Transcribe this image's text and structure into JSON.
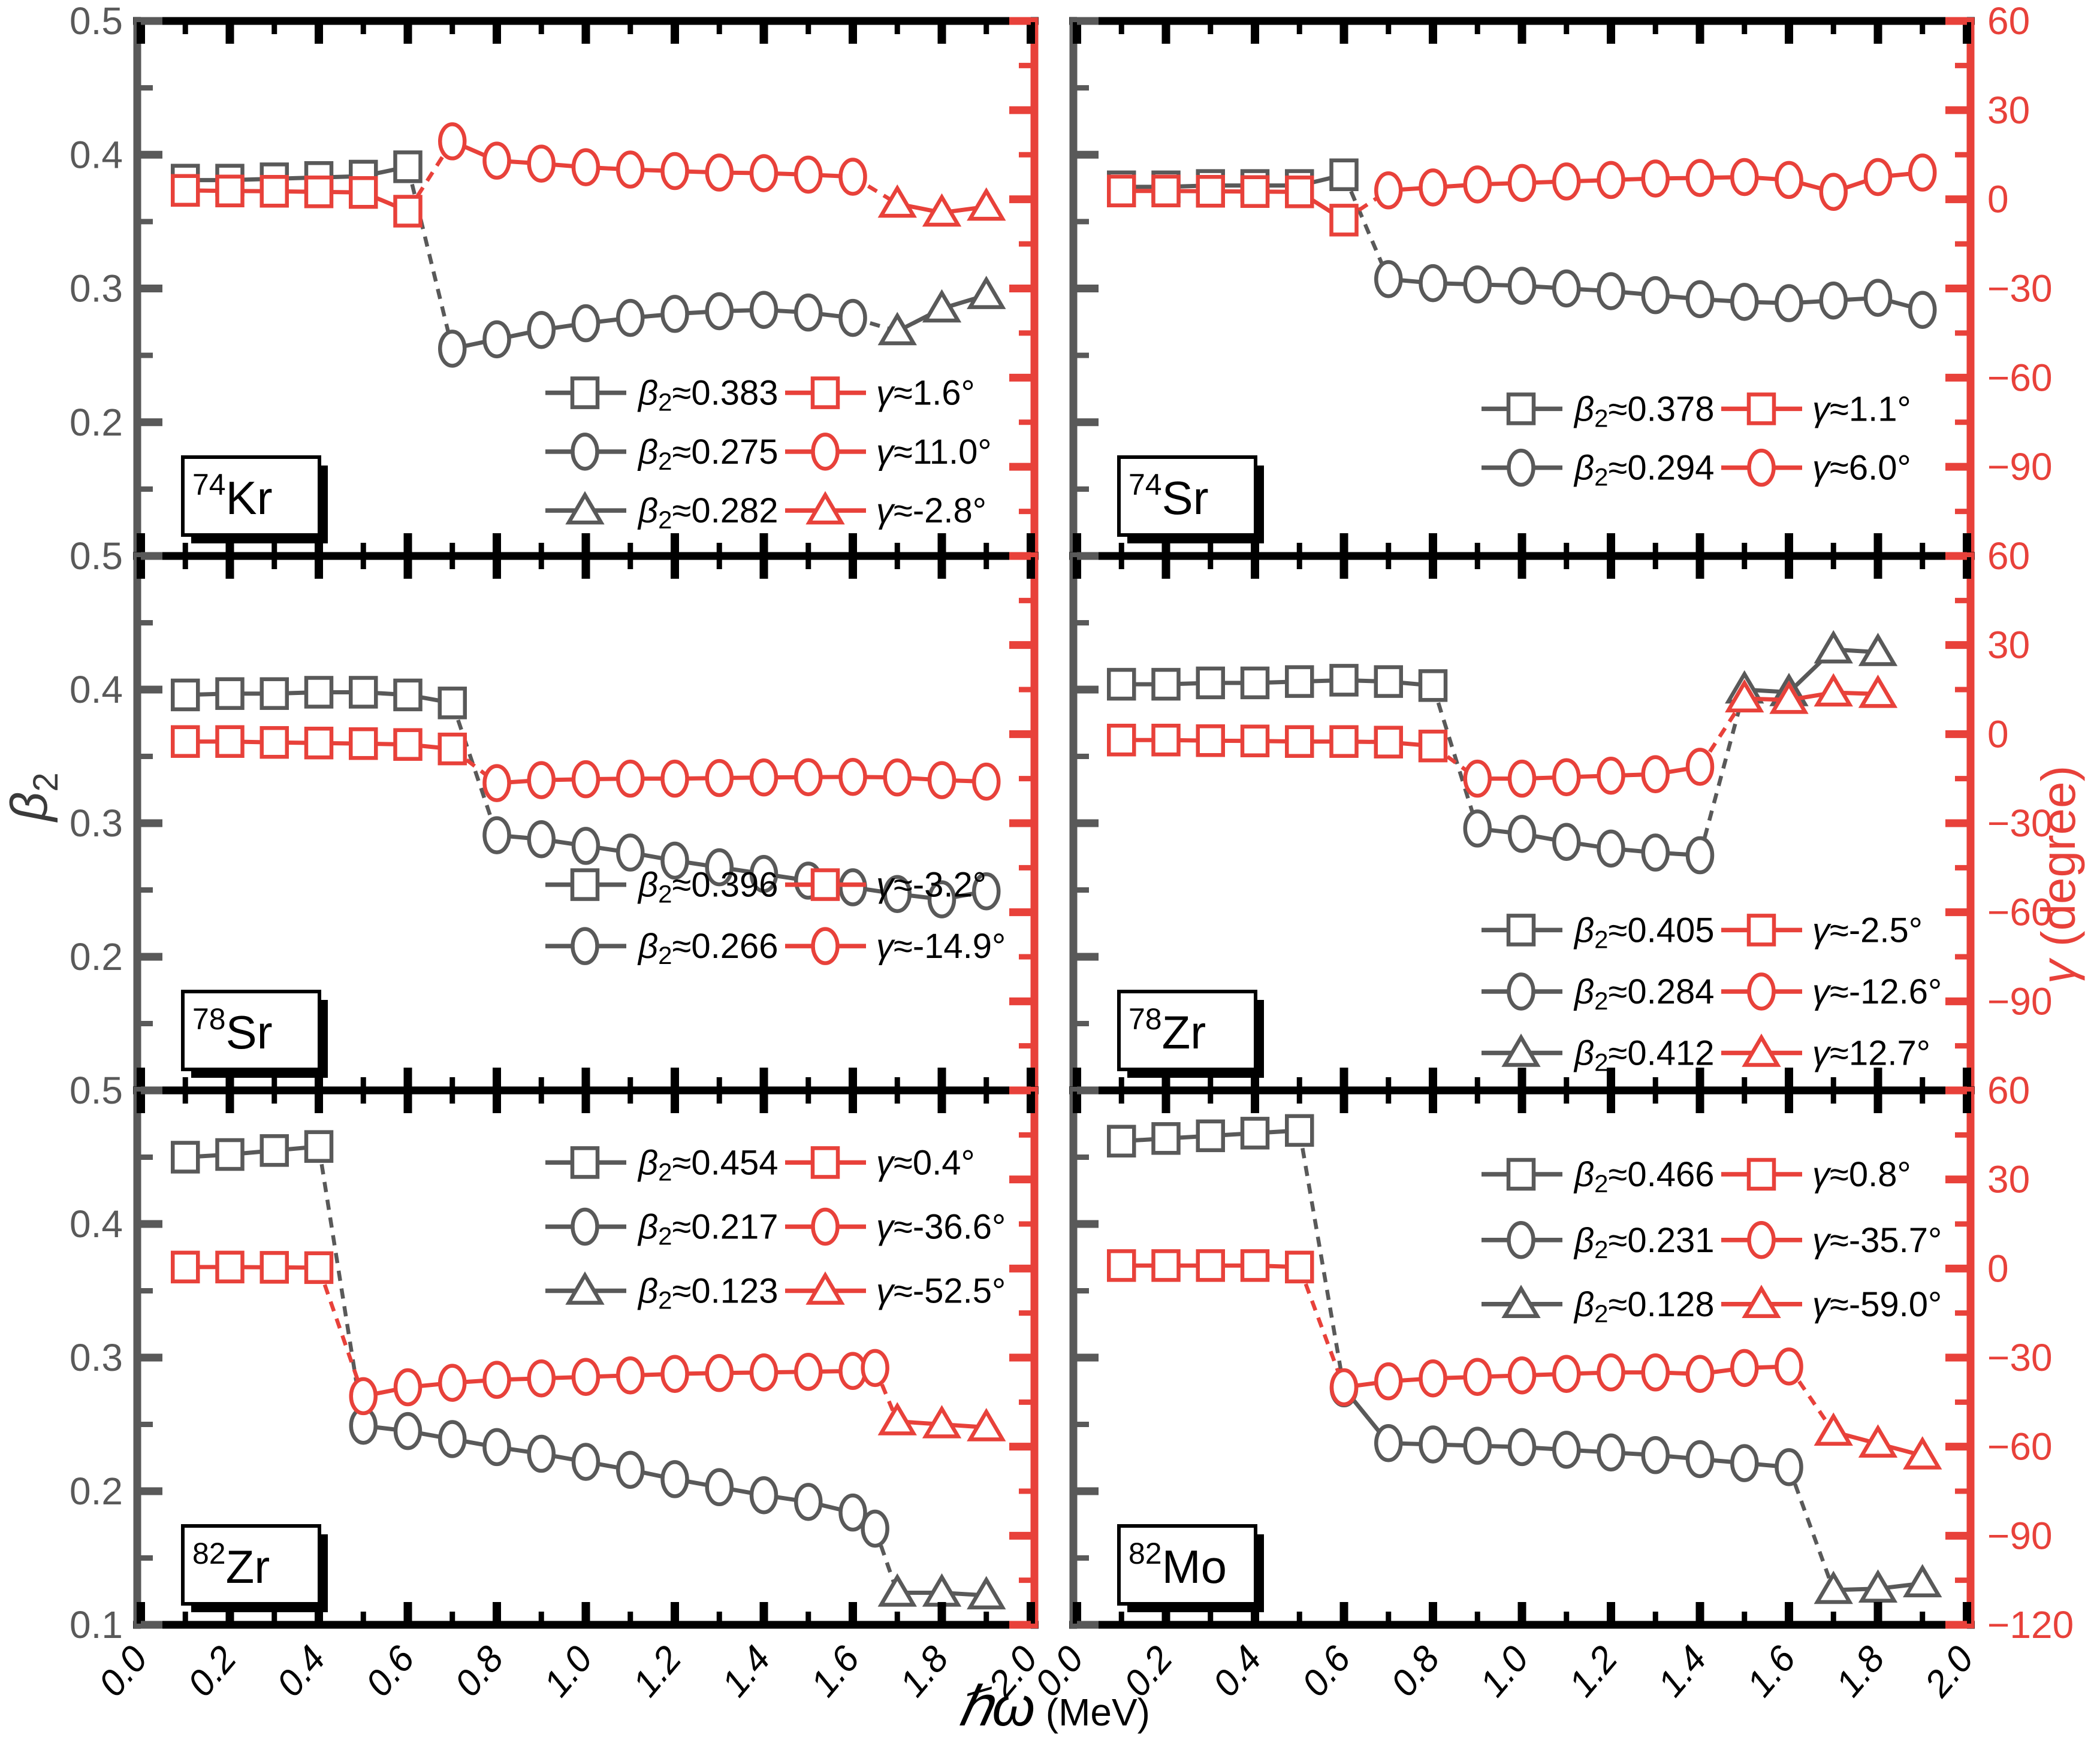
{
  "figure": {
    "colors": {
      "beta": "#595959",
      "gamma": "#e8413a",
      "frame": "#000000",
      "text": "#000000",
      "background": "#ffffff"
    },
    "x_axis": {
      "label_symbol": "ℏω",
      "label_rest": " (MeV)",
      "range": [
        0.0,
        2.0
      ],
      "tick_labels": [
        "0.0",
        "0.2",
        "0.4",
        "0.6",
        "0.8",
        "1.0",
        "1.2",
        "1.4",
        "1.6",
        "1.8",
        "2.0"
      ],
      "tick_values": [
        0.0,
        0.2,
        0.4,
        0.6,
        0.8,
        1.0,
        1.2,
        1.4,
        1.6,
        1.8,
        2.0
      ]
    },
    "y_left": {
      "label_symbol": "β",
      "label_subscript": "2",
      "range": [
        0.1,
        0.5
      ],
      "tick_labels": [
        "0.5",
        "0.4",
        "0.3",
        "0.2"
      ],
      "tick_values": [
        0.5,
        0.4,
        0.3,
        0.2
      ],
      "bottom_extra": {
        "label": "0.1",
        "value": 0.1
      }
    },
    "y_right": {
      "label_symbol": "γ",
      "label_rest": " (degree)",
      "range": [
        -120,
        60
      ],
      "tick_labels": [
        "60",
        "30",
        "0",
        "−30",
        "−60",
        "−90"
      ],
      "tick_values": [
        60,
        30,
        0,
        -30,
        -60,
        -90
      ],
      "bottom_extra": {
        "label": "−120",
        "value": -120
      }
    },
    "legend_beta_symbol": "β",
    "legend_beta_subscript": "2",
    "legend_gamma_symbol": "γ"
  },
  "chart_data": [
    {
      "type": "line",
      "row": 0,
      "col": 0,
      "nucleus": {
        "mass": "74",
        "element": "Kr"
      },
      "xlim": [
        0,
        2
      ],
      "ylim_left": [
        0.1,
        0.5
      ],
      "ylim_right": [
        -120,
        60
      ],
      "series": [
        {
          "group": "beta",
          "marker": "square",
          "x": [
            0.1,
            0.2,
            0.3,
            0.4,
            0.5,
            0.6
          ],
          "y": [
            0.381,
            0.381,
            0.382,
            0.383,
            0.384,
            0.391
          ]
        },
        {
          "group": "beta",
          "marker": "circle",
          "x": [
            0.7,
            0.8,
            0.9,
            1.0,
            1.1,
            1.2,
            1.3,
            1.4,
            1.5,
            1.6
          ],
          "y": [
            0.255,
            0.262,
            0.269,
            0.274,
            0.278,
            0.281,
            0.283,
            0.284,
            0.282,
            0.278
          ]
        },
        {
          "group": "beta",
          "marker": "triangle",
          "x": [
            1.7,
            1.8,
            1.9
          ],
          "y": [
            0.268,
            0.285,
            0.295
          ]
        },
        {
          "group": "gamma",
          "marker": "square",
          "x": [
            0.1,
            0.2,
            0.3,
            0.4,
            0.5,
            0.6
          ],
          "y": [
            3,
            2.8,
            2.7,
            2.5,
            2.3,
            -4
          ]
        },
        {
          "group": "gamma",
          "marker": "circle",
          "x": [
            0.7,
            0.8,
            0.9,
            1.0,
            1.1,
            1.2,
            1.3,
            1.4,
            1.5,
            1.6
          ],
          "y": [
            19.5,
            13,
            12,
            10.8,
            10,
            9.5,
            9,
            8.8,
            8.3,
            7.6
          ]
        },
        {
          "group": "gamma",
          "marker": "triangle",
          "x": [
            1.7,
            1.8,
            1.9
          ],
          "y": [
            -1.5,
            -4.5,
            -2.5
          ]
        }
      ],
      "legend": {
        "row_fracs": [
          0.695,
          0.805,
          0.915
        ],
        "rows": [
          {
            "marker": "square",
            "beta_value": "≈0.383",
            "gamma_value": "≈1.6°"
          },
          {
            "marker": "circle",
            "beta_value": "≈0.275",
            "gamma_value": "≈11.0°"
          },
          {
            "marker": "triangle",
            "beta_value": "≈0.282",
            "gamma_value": "≈-2.8°"
          }
        ]
      }
    },
    {
      "type": "line",
      "row": 0,
      "col": 1,
      "nucleus": {
        "mass": "74",
        "element": "Sr"
      },
      "xlim": [
        0,
        2
      ],
      "ylim_left": [
        0.1,
        0.5
      ],
      "ylim_right": [
        -120,
        60
      ],
      "series": [
        {
          "group": "beta",
          "marker": "square",
          "x": [
            0.1,
            0.2,
            0.3,
            0.4,
            0.5,
            0.6
          ],
          "y": [
            0.376,
            0.376,
            0.377,
            0.377,
            0.377,
            0.385
          ]
        },
        {
          "group": "beta",
          "marker": "circle",
          "x": [
            0.7,
            0.8,
            0.9,
            1.0,
            1.1,
            1.2,
            1.3,
            1.4,
            1.5,
            1.6,
            1.7,
            1.8,
            1.9
          ],
          "y": [
            0.307,
            0.304,
            0.303,
            0.302,
            0.3,
            0.298,
            0.295,
            0.292,
            0.29,
            0.289,
            0.291,
            0.293,
            0.284
          ]
        },
        {
          "group": "gamma",
          "marker": "square",
          "x": [
            0.1,
            0.2,
            0.3,
            0.4,
            0.5,
            0.6
          ],
          "y": [
            2.8,
            2.8,
            2.7,
            2.6,
            2.5,
            -7
          ]
        },
        {
          "group": "gamma",
          "marker": "circle",
          "x": [
            0.7,
            0.8,
            0.9,
            1.0,
            1.1,
            1.2,
            1.3,
            1.4,
            1.5,
            1.6,
            1.7,
            1.8,
            1.9
          ],
          "y": [
            3,
            4,
            5,
            5.5,
            6,
            6.5,
            7,
            7.2,
            7.5,
            6.5,
            2.5,
            7.5,
            9
          ]
        }
      ],
      "legend": {
        "row_fracs": [
          0.725,
          0.835
        ],
        "rows": [
          {
            "marker": "square",
            "beta_value": "≈0.378",
            "gamma_value": "≈1.1°"
          },
          {
            "marker": "circle",
            "beta_value": "≈0.294",
            "gamma_value": "≈6.0°"
          }
        ]
      }
    },
    {
      "type": "line",
      "row": 1,
      "col": 0,
      "nucleus": {
        "mass": "78",
        "element": "Sr"
      },
      "xlim": [
        0,
        2
      ],
      "ylim_left": [
        0.1,
        0.5
      ],
      "ylim_right": [
        -120,
        60
      ],
      "series": [
        {
          "group": "beta",
          "marker": "square",
          "x": [
            0.1,
            0.2,
            0.3,
            0.4,
            0.5,
            0.6,
            0.7
          ],
          "y": [
            0.396,
            0.397,
            0.397,
            0.398,
            0.398,
            0.396,
            0.39
          ]
        },
        {
          "group": "beta",
          "marker": "circle",
          "x": [
            0.8,
            0.9,
            1.0,
            1.1,
            1.2,
            1.3,
            1.4,
            1.5,
            1.6,
            1.7,
            1.8,
            1.9
          ],
          "y": [
            0.291,
            0.288,
            0.283,
            0.278,
            0.272,
            0.267,
            0.262,
            0.257,
            0.252,
            0.247,
            0.243,
            0.249
          ]
        },
        {
          "group": "gamma",
          "marker": "square",
          "x": [
            0.1,
            0.2,
            0.3,
            0.4,
            0.5,
            0.6,
            0.7
          ],
          "y": [
            -2.5,
            -2.5,
            -2.8,
            -3,
            -3.2,
            -3.5,
            -5
          ]
        },
        {
          "group": "gamma",
          "marker": "circle",
          "x": [
            0.8,
            0.9,
            1.0,
            1.1,
            1.2,
            1.3,
            1.4,
            1.5,
            1.6,
            1.7,
            1.8,
            1.9
          ],
          "y": [
            -16.5,
            -15.5,
            -15.2,
            -15,
            -15,
            -14.8,
            -14.6,
            -14.5,
            -14.4,
            -14.6,
            -15.5,
            -16
          ]
        }
      ],
      "legend": {
        "row_fracs": [
          0.615,
          0.73
        ],
        "rows": [
          {
            "marker": "square",
            "beta_value": "≈0.396",
            "gamma_value": "≈-3.2°"
          },
          {
            "marker": "circle",
            "beta_value": "≈0.266",
            "gamma_value": "≈-14.9°"
          }
        ]
      }
    },
    {
      "type": "line",
      "row": 1,
      "col": 1,
      "nucleus": {
        "mass": "78",
        "element": "Zr"
      },
      "xlim": [
        0,
        2
      ],
      "ylim_left": [
        0.1,
        0.5
      ],
      "ylim_right": [
        -120,
        60
      ],
      "series": [
        {
          "group": "beta",
          "marker": "square",
          "x": [
            0.1,
            0.2,
            0.3,
            0.4,
            0.5,
            0.6,
            0.7,
            0.8
          ],
          "y": [
            0.404,
            0.404,
            0.405,
            0.405,
            0.406,
            0.407,
            0.406,
            0.403
          ]
        },
        {
          "group": "beta",
          "marker": "circle",
          "x": [
            0.9,
            1.0,
            1.1,
            1.2,
            1.3,
            1.4
          ],
          "y": [
            0.296,
            0.292,
            0.286,
            0.281,
            0.278,
            0.276
          ]
        },
        {
          "group": "beta",
          "marker": "triangle",
          "x": [
            1.5,
            1.6,
            1.7,
            1.8
          ],
          "y": [
            0.4,
            0.398,
            0.43,
            0.428
          ]
        },
        {
          "group": "gamma",
          "marker": "square",
          "x": [
            0.1,
            0.2,
            0.3,
            0.4,
            0.5,
            0.6,
            0.7,
            0.8
          ],
          "y": [
            -2,
            -2,
            -2.2,
            -2.3,
            -2.5,
            -2.5,
            -2.7,
            -4
          ]
        },
        {
          "group": "gamma",
          "marker": "circle",
          "x": [
            0.9,
            1.0,
            1.1,
            1.2,
            1.3,
            1.4
          ],
          "y": [
            -15,
            -15,
            -14.5,
            -14,
            -13.5,
            -11
          ]
        },
        {
          "group": "gamma",
          "marker": "triangle",
          "x": [
            1.5,
            1.6,
            1.7,
            1.8
          ],
          "y": [
            12,
            11.5,
            14,
            13.5
          ]
        }
      ],
      "legend": {
        "row_fracs": [
          0.7,
          0.815,
          0.93
        ],
        "rows": [
          {
            "marker": "square",
            "beta_value": "≈0.405",
            "gamma_value": "≈-2.5°"
          },
          {
            "marker": "circle",
            "beta_value": "≈0.284",
            "gamma_value": "≈-12.6°"
          },
          {
            "marker": "triangle",
            "beta_value": "≈0.412",
            "gamma_value": "≈12.7°"
          }
        ]
      }
    },
    {
      "type": "line",
      "row": 2,
      "col": 0,
      "nucleus": {
        "mass": "82",
        "element": "Zr"
      },
      "xlim": [
        0,
        2
      ],
      "ylim_left": [
        0.1,
        0.5
      ],
      "ylim_right": [
        -120,
        60
      ],
      "series": [
        {
          "group": "beta",
          "marker": "square",
          "x": [
            0.1,
            0.2,
            0.3,
            0.4
          ],
          "y": [
            0.45,
            0.452,
            0.455,
            0.458
          ]
        },
        {
          "group": "beta",
          "marker": "circle",
          "x": [
            0.5,
            0.6,
            0.7,
            0.8,
            0.9,
            1.0,
            1.1,
            1.2,
            1.3,
            1.4,
            1.5,
            1.6,
            1.65
          ],
          "y": [
            0.249,
            0.245,
            0.239,
            0.233,
            0.228,
            0.222,
            0.216,
            0.209,
            0.203,
            0.197,
            0.192,
            0.184,
            0.172
          ]
        },
        {
          "group": "beta",
          "marker": "triangle",
          "x": [
            1.7,
            1.8,
            1.9
          ],
          "y": [
            0.124,
            0.124,
            0.122
          ]
        },
        {
          "group": "gamma",
          "marker": "square",
          "x": [
            0.1,
            0.2,
            0.3,
            0.4
          ],
          "y": [
            0.5,
            0.5,
            0.4,
            0.3
          ]
        },
        {
          "group": "gamma",
          "marker": "circle",
          "x": [
            0.5,
            0.6,
            0.7,
            0.8,
            0.9,
            1.0,
            1.1,
            1.2,
            1.3,
            1.4,
            1.5,
            1.6,
            1.65
          ],
          "y": [
            -43,
            -40,
            -38.5,
            -37.5,
            -37,
            -36.5,
            -36,
            -35.5,
            -35.2,
            -35,
            -34.8,
            -34.5,
            -33.5
          ]
        },
        {
          "group": "gamma",
          "marker": "triangle",
          "x": [
            1.7,
            1.8,
            1.9
          ],
          "y": [
            -51.5,
            -52.5,
            -53.5
          ]
        }
      ],
      "legend": {
        "row_fracs": [
          0.135,
          0.255,
          0.375
        ],
        "rows": [
          {
            "marker": "square",
            "beta_value": "≈0.454",
            "gamma_value": "≈0.4°"
          },
          {
            "marker": "circle",
            "beta_value": "≈0.217",
            "gamma_value": "≈-36.6°"
          },
          {
            "marker": "triangle",
            "beta_value": "≈0.123",
            "gamma_value": "≈-52.5°"
          }
        ]
      }
    },
    {
      "type": "line",
      "row": 2,
      "col": 1,
      "nucleus": {
        "mass": "82",
        "element": "Mo"
      },
      "xlim": [
        0,
        2
      ],
      "ylim_left": [
        0.1,
        0.5
      ],
      "ylim_right": [
        -120,
        60
      ],
      "series": [
        {
          "group": "beta",
          "marker": "square",
          "x": [
            0.1,
            0.2,
            0.3,
            0.4,
            0.5
          ],
          "y": [
            0.462,
            0.464,
            0.466,
            0.468,
            0.47
          ]
        },
        {
          "group": "beta",
          "marker": "circle",
          "x": [
            0.6,
            0.7,
            0.8,
            0.9,
            1.0,
            1.1,
            1.2,
            1.3,
            1.4,
            1.5,
            1.6
          ],
          "y": [
            0.277,
            0.236,
            0.235,
            0.234,
            0.233,
            0.231,
            0.229,
            0.227,
            0.224,
            0.221,
            0.218
          ]
        },
        {
          "group": "beta",
          "marker": "triangle",
          "x": [
            1.7,
            1.8,
            1.9
          ],
          "y": [
            0.126,
            0.127,
            0.131
          ]
        },
        {
          "group": "gamma",
          "marker": "square",
          "x": [
            0.1,
            0.2,
            0.3,
            0.4,
            0.5
          ],
          "y": [
            1,
            1,
            1,
            1,
            0.5
          ]
        },
        {
          "group": "gamma",
          "marker": "circle",
          "x": [
            0.6,
            0.7,
            0.8,
            0.9,
            1.0,
            1.1,
            1.2,
            1.3,
            1.4,
            1.5,
            1.6
          ],
          "y": [
            -40,
            -38,
            -37,
            -36.5,
            -36,
            -35.5,
            -35,
            -35,
            -35.5,
            -33.5,
            -33
          ]
        },
        {
          "group": "gamma",
          "marker": "triangle",
          "x": [
            1.7,
            1.8,
            1.9
          ],
          "y": [
            -55,
            -59,
            -63
          ]
        }
      ],
      "legend": {
        "row_fracs": [
          0.157,
          0.28,
          0.4
        ],
        "rows": [
          {
            "marker": "square",
            "beta_value": "≈0.466",
            "gamma_value": "≈0.8°"
          },
          {
            "marker": "circle",
            "beta_value": "≈0.231",
            "gamma_value": "≈-35.7°"
          },
          {
            "marker": "triangle",
            "beta_value": "≈0.128",
            "gamma_value": "≈-59.0°"
          }
        ]
      }
    }
  ]
}
